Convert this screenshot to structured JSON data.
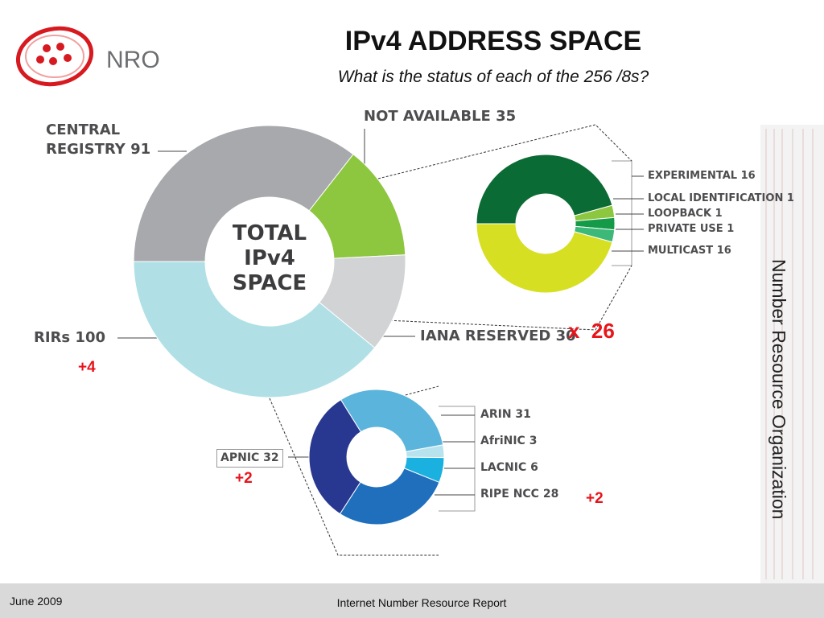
{
  "slide": {
    "logo": "NRO",
    "title": "IPv4 ADDRESS SPACE",
    "subtitle": "What is the status of each of the 256 /8s?",
    "side_text": "Number Resource Organization",
    "footer_left": "June 2009",
    "footer_center": "Internet Number Resource Report"
  },
  "chart_data": [
    {
      "type": "pie",
      "center_label": "TOTAL IPv4 SPACE",
      "categories": [
        "CENTRAL REGISTRY",
        "NOT AVAILABLE",
        "IANA RESERVED",
        "RIRs"
      ],
      "values": [
        91,
        35,
        30,
        100
      ],
      "colors": [
        "#a7a9ac",
        "#8dc63f",
        "#d1d3d4",
        "#b0e0e6"
      ]
    },
    {
      "type": "pie",
      "categories": [
        "EXPERIMENTAL",
        "LOCAL IDENTIFICATION",
        "LOOPBACK",
        "PRIVATE USE",
        "MULTICAST"
      ],
      "values": [
        16,
        1,
        1,
        1,
        16
      ],
      "colors": [
        "#0b6b34",
        "#8dc63f",
        "#159a48",
        "#3cb878",
        "#d7df23"
      ]
    },
    {
      "type": "pie",
      "categories": [
        "ARIN",
        "AfriNIC",
        "LACNIC",
        "RIPE NCC",
        "APNIC"
      ],
      "values": [
        31,
        3,
        6,
        28,
        32
      ],
      "colors": [
        "#5ab4dc",
        "#b7e3ee",
        "#1ab0e0",
        "#1f6fbd",
        "#283891"
      ]
    }
  ],
  "annotations": [
    "x  26",
    "+4",
    "+2",
    "+2"
  ]
}
